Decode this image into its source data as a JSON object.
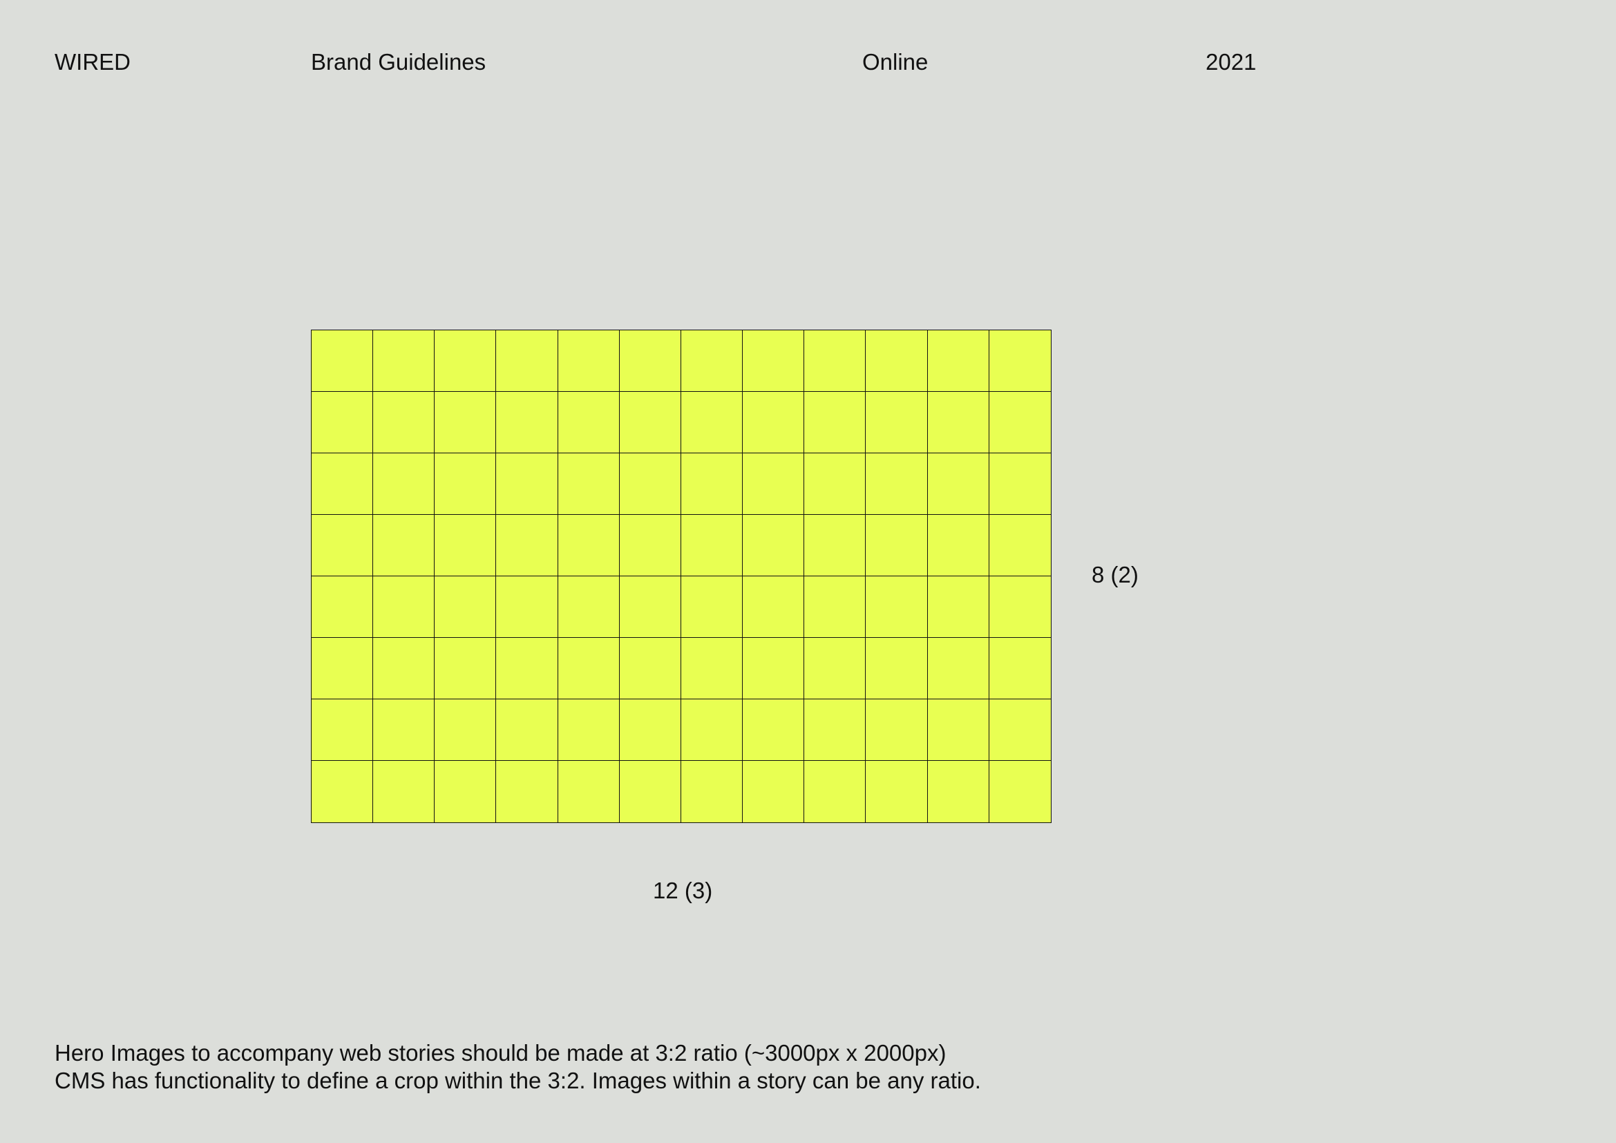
{
  "header": {
    "brand": "WIRED",
    "section": "Brand Guidelines",
    "category": "Online",
    "year": "2021"
  },
  "grid": {
    "columns": 12,
    "rows": 8,
    "fill_color": "#e8ff52",
    "line_color": "#111111",
    "rows_label": "8 (2)",
    "columns_label": "12 (3)"
  },
  "body": {
    "lines": [
      "Hero Images to accompany web stories should be made at 3:2 ratio (~3000px x 2000px)",
      "CMS has functionality to define a crop within the 3:2. Images within a story can be any ratio."
    ]
  }
}
